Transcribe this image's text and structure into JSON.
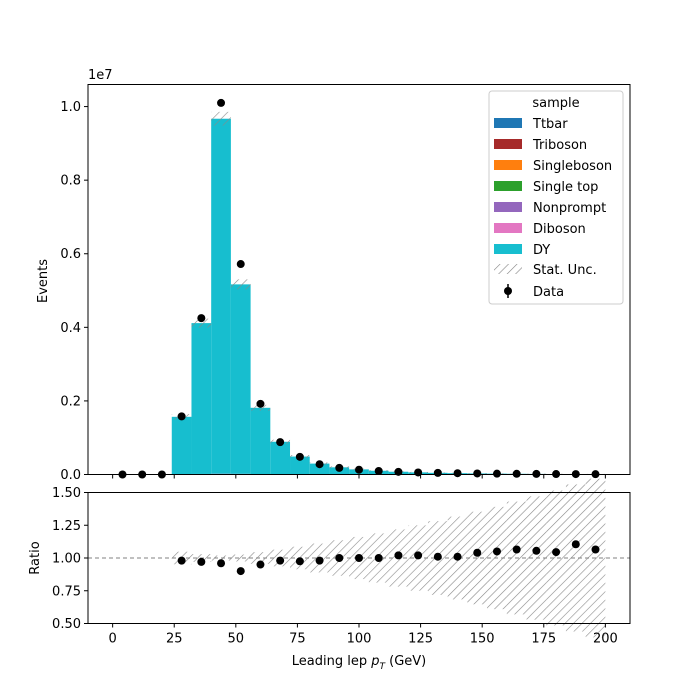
{
  "chart_data": [
    {
      "type": "bar",
      "stacked": true,
      "bin_edges": [
        0,
        8,
        16,
        24,
        32,
        40,
        48,
        56,
        64,
        72,
        80,
        88,
        96,
        104,
        112,
        120,
        128,
        136,
        144,
        152,
        160,
        168,
        176,
        184,
        192,
        200
      ],
      "x": [
        4,
        12,
        20,
        28,
        36,
        44,
        52,
        60,
        68,
        76,
        84,
        92,
        100,
        108,
        116,
        124,
        132,
        140,
        148,
        156,
        164,
        172,
        180,
        188,
        196
      ],
      "ylabel": "Events",
      "y_scale_label": "1e7",
      "ylim": [
        0,
        10600000
      ],
      "xlim": [
        -10,
        210
      ],
      "yticks": [
        0.0,
        0.2,
        0.4,
        0.6,
        0.8,
        1.0
      ],
      "xticks": [
        0,
        25,
        50,
        75,
        100,
        125,
        150,
        175,
        200
      ],
      "legend_title": "sample",
      "legend_position": "top-right",
      "series": [
        {
          "name": "Ttbar",
          "color": "#1f77b4",
          "values": [
            0,
            0,
            0,
            2000,
            4000,
            6000,
            6000,
            5000,
            4000,
            3500,
            3000,
            2500,
            2200,
            2000,
            1800,
            1500,
            1300,
            1100,
            1000,
            900,
            800,
            700,
            600,
            500,
            450
          ]
        },
        {
          "name": "Triboson",
          "color": "#a62a2a",
          "values": [
            0,
            0,
            0,
            50,
            80,
            100,
            100,
            80,
            60,
            50,
            40,
            30,
            25,
            20,
            18,
            15,
            12,
            10,
            9,
            8,
            7,
            6,
            5,
            4,
            4
          ]
        },
        {
          "name": "Singleboson",
          "color": "#ff7f0e",
          "values": [
            0,
            0,
            0,
            1000,
            2000,
            3000,
            2500,
            1500,
            1000,
            700,
            500,
            400,
            300,
            250,
            200,
            150,
            120,
            100,
            90,
            80,
            70,
            60,
            50,
            40,
            35
          ]
        },
        {
          "name": "Single top",
          "color": "#2ca02c",
          "values": [
            0,
            0,
            0,
            300,
            600,
            800,
            700,
            600,
            500,
            400,
            350,
            300,
            250,
            200,
            180,
            150,
            120,
            100,
            90,
            80,
            70,
            60,
            50,
            45,
            40
          ]
        },
        {
          "name": "Nonprompt",
          "color": "#9467bd",
          "values": [
            0,
            0,
            0,
            3000,
            5000,
            6000,
            5000,
            3000,
            2000,
            1500,
            1000,
            800,
            600,
            500,
            400,
            300,
            250,
            200,
            180,
            150,
            120,
            100,
            90,
            80,
            70
          ]
        },
        {
          "name": "Diboson",
          "color": "#e377c2",
          "values": [
            0,
            0,
            0,
            1500,
            3000,
            4000,
            3500,
            2800,
            2200,
            1800,
            1500,
            1200,
            1000,
            900,
            800,
            700,
            600,
            500,
            450,
            400,
            350,
            300,
            280,
            250,
            220
          ]
        },
        {
          "name": "DY",
          "color": "#17becf",
          "values": [
            0,
            0,
            0,
            1560000,
            4100000,
            9650000,
            5150000,
            1800000,
            880000,
            480000,
            290000,
            190000,
            135000,
            98000,
            72000,
            55000,
            43000,
            34000,
            27000,
            22000,
            18000,
            15000,
            12500,
            10500,
            9000
          ]
        }
      ],
      "data": {
        "name": "Data",
        "values": [
          0,
          0,
          0,
          1580000,
          4250000,
          10100000,
          5720000,
          1920000,
          880000,
          480000,
          280000,
          180000,
          130000,
          95000,
          72000,
          56000,
          44000,
          35000,
          28000,
          23000,
          19000,
          15500,
          13000,
          11500,
          9500
        ]
      },
      "stat_unc_label": "Stat. Unc."
    },
    {
      "type": "scatter",
      "x": [
        28,
        36,
        44,
        52,
        60,
        68,
        76,
        84,
        92,
        100,
        108,
        116,
        124,
        132,
        140,
        148,
        156,
        164,
        172,
        180,
        188,
        196
      ],
      "values": [
        0.98,
        0.97,
        0.96,
        0.9,
        0.95,
        0.98,
        0.975,
        0.98,
        1.0,
        1.0,
        1.0,
        1.02,
        1.02,
        1.01,
        1.01,
        1.04,
        1.05,
        1.065,
        1.055,
        1.045,
        1.105,
        1.065
      ],
      "xlabel": "Leading lep $p_T$ (GeV)",
      "xlabel_main": "Leading lep ",
      "xlabel_math": "p",
      "xlabel_sub": "T",
      "xlabel_unit": " (GeV)",
      "ylabel": "Ratio",
      "ylim": [
        0.5,
        1.5
      ],
      "yticks": [
        "0.50",
        "0.75",
        "1.00",
        "1.25",
        "1.50"
      ],
      "reference_line": 1.0
    }
  ]
}
